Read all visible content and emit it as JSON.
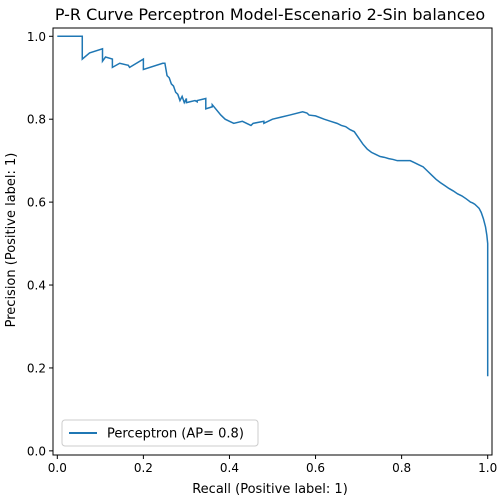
{
  "chart_data": {
    "type": "line",
    "title": "P-R Curve Perceptron Model-Escenario 2-Sin balanceo",
    "xlabel": "Recall (Positive label: 1)",
    "ylabel": "Precision (Positive label: 1)",
    "xlim": [
      -0.01,
      1.01
    ],
    "ylim": [
      -0.01,
      1.02
    ],
    "x_ticks": [
      {
        "value": 0.0,
        "label": "0.0"
      },
      {
        "value": 0.2,
        "label": "0.2"
      },
      {
        "value": 0.4,
        "label": "0.4"
      },
      {
        "value": 0.6,
        "label": "0.6"
      },
      {
        "value": 0.8,
        "label": "0.8"
      },
      {
        "value": 1.0,
        "label": "1.0"
      }
    ],
    "y_ticks": [
      {
        "value": 0.0,
        "label": "0.0"
      },
      {
        "value": 0.2,
        "label": "0.2"
      },
      {
        "value": 0.4,
        "label": "0.4"
      },
      {
        "value": 0.6,
        "label": "0.6"
      },
      {
        "value": 0.8,
        "label": "0.8"
      },
      {
        "value": 1.0,
        "label": "1.0"
      }
    ],
    "grid": false,
    "legend": {
      "placement": "lower-left",
      "entries": [
        "Perceptron (AP= 0.8)"
      ]
    },
    "series": [
      {
        "name": "Perceptron (AP= 0.8)",
        "color": "#1f77b4",
        "x": [
          0.0,
          0.058,
          0.058,
          0.075,
          0.105,
          0.105,
          0.112,
          0.128,
          0.128,
          0.145,
          0.165,
          0.168,
          0.2,
          0.2,
          0.245,
          0.25,
          0.255,
          0.26,
          0.265,
          0.27,
          0.275,
          0.28,
          0.285,
          0.29,
          0.295,
          0.3,
          0.3,
          0.32,
          0.325,
          0.325,
          0.345,
          0.345,
          0.36,
          0.36,
          0.38,
          0.39,
          0.4,
          0.41,
          0.43,
          0.45,
          0.455,
          0.48,
          0.48,
          0.5,
          0.52,
          0.54,
          0.57,
          0.58,
          0.585,
          0.6,
          0.62,
          0.635,
          0.65,
          0.66,
          0.67,
          0.68,
          0.69,
          0.7,
          0.71,
          0.72,
          0.73,
          0.74,
          0.75,
          0.76,
          0.77,
          0.78,
          0.79,
          0.8,
          0.81,
          0.82,
          0.83,
          0.84,
          0.85,
          0.86,
          0.87,
          0.88,
          0.89,
          0.9,
          0.91,
          0.92,
          0.93,
          0.94,
          0.95,
          0.955,
          0.96,
          0.965,
          0.97,
          0.975,
          0.98,
          0.985,
          0.99,
          0.995,
          0.998,
          1.0,
          1.0
        ],
        "y": [
          1.0,
          1.0,
          0.945,
          0.96,
          0.97,
          0.94,
          0.95,
          0.945,
          0.925,
          0.935,
          0.93,
          0.925,
          0.945,
          0.92,
          0.935,
          0.935,
          0.905,
          0.9,
          0.885,
          0.88,
          0.865,
          0.86,
          0.845,
          0.855,
          0.84,
          0.85,
          0.84,
          0.845,
          0.842,
          0.845,
          0.85,
          0.825,
          0.83,
          0.835,
          0.81,
          0.8,
          0.795,
          0.79,
          0.795,
          0.785,
          0.79,
          0.795,
          0.79,
          0.8,
          0.805,
          0.81,
          0.818,
          0.815,
          0.81,
          0.808,
          0.8,
          0.795,
          0.79,
          0.785,
          0.782,
          0.775,
          0.77,
          0.755,
          0.74,
          0.728,
          0.72,
          0.715,
          0.71,
          0.708,
          0.705,
          0.703,
          0.7,
          0.7,
          0.7,
          0.7,
          0.695,
          0.69,
          0.685,
          0.675,
          0.665,
          0.655,
          0.647,
          0.64,
          0.633,
          0.627,
          0.62,
          0.615,
          0.608,
          0.604,
          0.6,
          0.598,
          0.595,
          0.59,
          0.585,
          0.575,
          0.56,
          0.54,
          0.52,
          0.5,
          0.18
        ]
      }
    ]
  }
}
